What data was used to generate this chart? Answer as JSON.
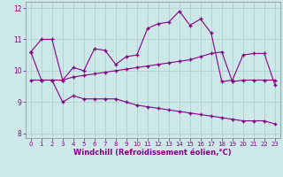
{
  "xlabel": "Windchill (Refroidissement éolien,°C)",
  "background_color": "#cde8e8",
  "grid_color": "#aacccc",
  "line_color": "#880088",
  "xlim": [
    -0.5,
    23.5
  ],
  "ylim": [
    7.85,
    12.2
  ],
  "yticks": [
    8,
    9,
    10,
    11,
    12
  ],
  "xticks": [
    0,
    1,
    2,
    3,
    4,
    5,
    6,
    7,
    8,
    9,
    10,
    11,
    12,
    13,
    14,
    15,
    16,
    17,
    18,
    19,
    20,
    21,
    22,
    23
  ],
  "line1_x": [
    0,
    1,
    2,
    3,
    4,
    5,
    6,
    7,
    8,
    9,
    10,
    11,
    12,
    13,
    14,
    15,
    16,
    17,
    18,
    19,
    20,
    21,
    22,
    23
  ],
  "line1_y": [
    10.6,
    11.0,
    11.0,
    9.7,
    10.1,
    10.0,
    10.7,
    10.65,
    10.2,
    10.45,
    10.5,
    11.35,
    11.5,
    11.55,
    11.9,
    11.45,
    11.65,
    11.2,
    9.65,
    9.7,
    10.5,
    10.55,
    10.55,
    9.55
  ],
  "line2_x": [
    0,
    1,
    2,
    3,
    4,
    5,
    6,
    7,
    8,
    9,
    10,
    11,
    12,
    13,
    14,
    15,
    16,
    17,
    18,
    19,
    20,
    21,
    22,
    23
  ],
  "line2_y": [
    9.7,
    9.7,
    9.7,
    9.7,
    9.8,
    9.85,
    9.9,
    9.95,
    10.0,
    10.05,
    10.1,
    10.15,
    10.2,
    10.25,
    10.3,
    10.35,
    10.45,
    10.55,
    10.6,
    9.65,
    9.7,
    9.7,
    9.7,
    9.7
  ],
  "line3_x": [
    0,
    1,
    2,
    3,
    4,
    5,
    6,
    7,
    8,
    9,
    10,
    11,
    12,
    13,
    14,
    15,
    16,
    17,
    18,
    19,
    20,
    21,
    22,
    23
  ],
  "line3_y": [
    10.6,
    9.7,
    9.7,
    9.0,
    9.2,
    9.1,
    9.1,
    9.1,
    9.1,
    9.0,
    8.9,
    8.85,
    8.8,
    8.75,
    8.7,
    8.65,
    8.6,
    8.55,
    8.5,
    8.45,
    8.4,
    8.4,
    8.4,
    8.3
  ]
}
